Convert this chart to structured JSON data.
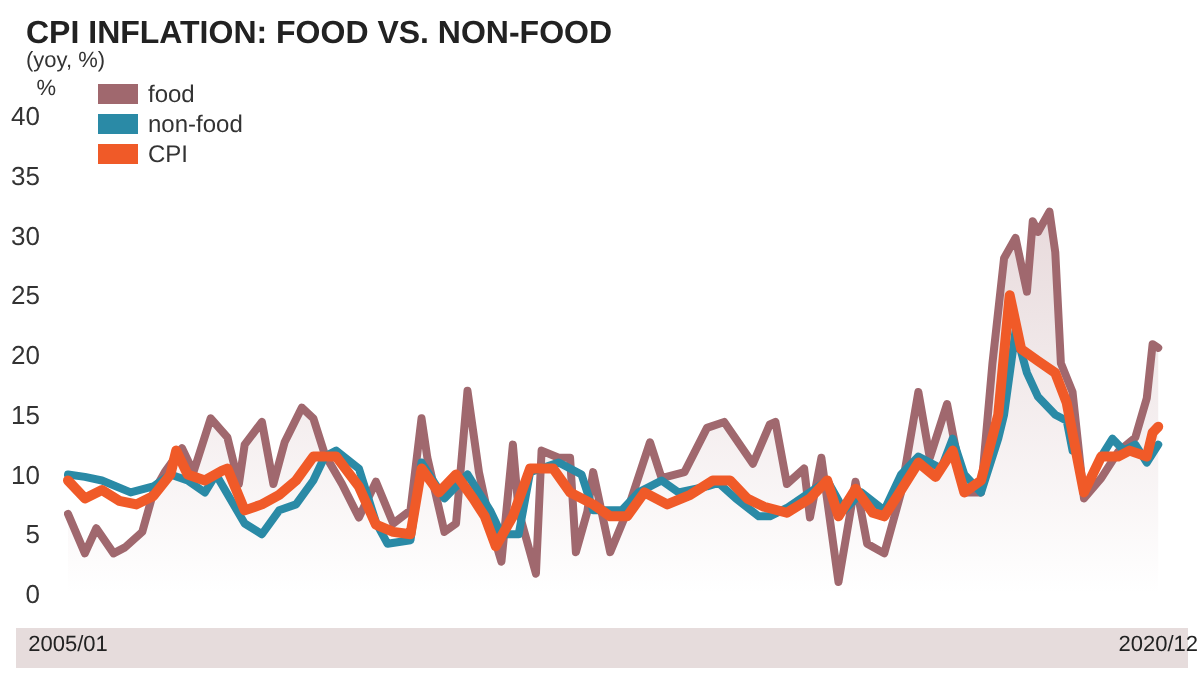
{
  "chart_data": {
    "type": "line",
    "title": "CPI INFLATION: FOOD VS. NON-FOOD",
    "subtitle": "(yoy, %)",
    "ylabel": "%",
    "xlim": [
      "2005-01",
      "2020-12"
    ],
    "xticks": [
      {
        "value": "2005-01",
        "label": "2005/01"
      },
      {
        "value": "2020-12",
        "label": "2020/12"
      }
    ],
    "ylim": [
      0,
      40
    ],
    "yticks": [
      0,
      5,
      10,
      15,
      20,
      25,
      30,
      35,
      40
    ],
    "grid": false,
    "legend": "top left",
    "marker": "none",
    "line_style": "solid",
    "series": [
      {
        "name": "food",
        "type": "area",
        "color": "#a0686e",
        "x": [
          "2005-01",
          "2005-04",
          "2005-06",
          "2005-09",
          "2005-11",
          "2006-02",
          "2006-04",
          "2006-06",
          "2006-09",
          "2006-11",
          "2007-02",
          "2007-05",
          "2007-07",
          "2007-08",
          "2007-11",
          "2008-01",
          "2008-03",
          "2008-06",
          "2008-08",
          "2008-10",
          "2009-01",
          "2009-04",
          "2009-07",
          "2009-10",
          "2010-01",
          "2010-03",
          "2010-04",
          "2010-07",
          "2010-09",
          "2010-11",
          "2011-01",
          "2011-03",
          "2011-05",
          "2011-07",
          "2011-08",
          "2011-11",
          "2011-12",
          "2012-03",
          "2012-05",
          "2012-06",
          "2012-08",
          "2012-09",
          "2012-12",
          "2013-03",
          "2013-07",
          "2013-09",
          "2014-01",
          "2014-05",
          "2014-08",
          "2015-01",
          "2015-04",
          "2015-05",
          "2015-07",
          "2015-10",
          "2015-11",
          "2016-01",
          "2016-04",
          "2016-07",
          "2016-09",
          "2016-12",
          "2017-03",
          "2017-06",
          "2017-08",
          "2017-11",
          "2018-02",
          "2018-05",
          "2018-07",
          "2018-09",
          "2018-11",
          "2019-01",
          "2019-02",
          "2019-03",
          "2019-05",
          "2019-06",
          "2019-07",
          "2019-09",
          "2019-11",
          "2020-02",
          "2020-05",
          "2020-08",
          "2020-10",
          "2020-11",
          "2020-12"
        ],
        "values": [
          6.7,
          3.4,
          5.5,
          3.4,
          3.9,
          5.2,
          8.5,
          10.2,
          12.2,
          10.2,
          14.7,
          13.1,
          9.2,
          12.5,
          14.4,
          9.2,
          12.7,
          15.6,
          14.7,
          11.7,
          9.2,
          6.4,
          9.4,
          5.9,
          7,
          14.7,
          11.4,
          5.2,
          5.9,
          17,
          10.2,
          5.9,
          2.7,
          12.5,
          6.9,
          1.7,
          12,
          11.4,
          11.4,
          3.5,
          6.9,
          10.2,
          3.5,
          6.9,
          12.7,
          9.7,
          10.2,
          13.9,
          14.4,
          10.9,
          14.2,
          14.4,
          9.2,
          10.5,
          6.4,
          11.4,
          1.0,
          9.4,
          4.2,
          3.4,
          8.5,
          16.9,
          11.4,
          15.9,
          8.5,
          8.5,
          19.3,
          28.1,
          29.8,
          25.3,
          31.2,
          30.3,
          32.0,
          28.6,
          19.3,
          16.9,
          8.0,
          9.7,
          11.9,
          13.1,
          16.4,
          20.9,
          20.6
        ]
      },
      {
        "name": "non-food",
        "color": "#2a8aa6",
        "x": [
          "2005-01",
          "2005-04",
          "2005-07",
          "2005-12",
          "2006-04",
          "2006-07",
          "2006-10",
          "2007-01",
          "2007-03",
          "2007-08",
          "2007-11",
          "2008-02",
          "2008-05",
          "2008-08",
          "2008-10",
          "2008-12",
          "2009-04",
          "2009-07",
          "2009-09",
          "2010-01",
          "2010-03",
          "2010-07",
          "2010-11",
          "2011-03",
          "2011-05",
          "2011-08",
          "2011-10",
          "2012-03",
          "2012-07",
          "2012-09",
          "2013-02",
          "2013-05",
          "2013-09",
          "2013-12",
          "2014-05",
          "2014-07",
          "2014-10",
          "2015-02",
          "2015-04",
          "2015-07",
          "2015-11",
          "2016-02",
          "2016-05",
          "2016-08",
          "2016-12",
          "2017-03",
          "2017-06",
          "2017-10",
          "2017-12",
          "2018-02",
          "2018-05",
          "2018-08",
          "2018-09",
          "2018-11",
          "2019-01",
          "2019-03",
          "2019-06",
          "2019-08",
          "2019-09",
          "2019-11",
          "2020-02",
          "2020-04",
          "2020-06",
          "2020-08",
          "2020-10",
          "2020-12"
        ],
        "values": [
          10,
          9.8,
          9.5,
          8.5,
          9,
          10,
          9.5,
          8.5,
          10,
          5.9,
          5,
          7,
          7.5,
          9.5,
          11.5,
          12,
          10.5,
          6,
          4.2,
          4.5,
          11,
          8,
          10,
          7,
          5,
          5,
          10.2,
          11,
          10,
          7,
          7,
          8.5,
          9.5,
          8.5,
          9,
          9.3,
          8,
          6.5,
          6.5,
          7.2,
          8.5,
          9.5,
          7,
          8.5,
          7,
          10,
          11.5,
          10.5,
          13,
          10,
          8.5,
          13,
          15,
          22,
          18.5,
          16.5,
          15,
          14.5,
          12,
          null,
          11.5,
          13,
          12,
          12.5,
          11,
          12.5
        ]
      },
      {
        "name": "CPI",
        "color": "#f05a28",
        "x": [
          "2005-01",
          "2005-04",
          "2005-07",
          "2005-10",
          "2006-01",
          "2006-04",
          "2006-07",
          "2006-08",
          "2006-10",
          "2007-01",
          "2007-04",
          "2007-05",
          "2007-08",
          "2007-11",
          "2008-02",
          "2008-05",
          "2008-08",
          "2008-12",
          "2009-04",
          "2009-07",
          "2009-10",
          "2010-01",
          "2010-03",
          "2010-06",
          "2010-09",
          "2010-12",
          "2011-02",
          "2011-04",
          "2011-07",
          "2011-10",
          "2012-02",
          "2012-05",
          "2012-09",
          "2012-12",
          "2013-03",
          "2013-06",
          "2013-10",
          "2014-02",
          "2014-06",
          "2014-09",
          "2014-12",
          "2015-03",
          "2015-07",
          "2015-11",
          "2016-02",
          "2016-04",
          "2016-07",
          "2016-10",
          "2016-12",
          "2017-03",
          "2017-06",
          "2017-09",
          "2017-12",
          "2018-02",
          "2018-05",
          "2018-08",
          "2018-10",
          "2018-12",
          "2019-03",
          "2019-06",
          "2019-08",
          "2019-10",
          "2019-11",
          "2020-02",
          "2020-05",
          "2020-07",
          "2020-10",
          "2020-11",
          "2020-12"
        ],
        "values": [
          9.5,
          8,
          8.7,
          7.8,
          7.5,
          8.2,
          10,
          12,
          10,
          9.5,
          10.3,
          10.5,
          7,
          7.5,
          8.3,
          9.5,
          11.5,
          11.5,
          9,
          5.8,
          5.2,
          5,
          10.5,
          8.5,
          10,
          8,
          6.5,
          4,
          6.5,
          10.5,
          10.5,
          8.5,
          7.5,
          6.5,
          6.5,
          8.5,
          7.5,
          8.3,
          9.5,
          9.5,
          8,
          7.3,
          6.8,
          8,
          9.5,
          6.5,
          8.8,
          6.8,
          6.5,
          8.7,
          11,
          9.8,
          12,
          8.5,
          9.5,
          15,
          25,
          20.5,
          19.5,
          18.5,
          16,
          11,
          8.5,
          11.5,
          11.5,
          12,
          11.5,
          13.5,
          14
        ]
      }
    ]
  }
}
